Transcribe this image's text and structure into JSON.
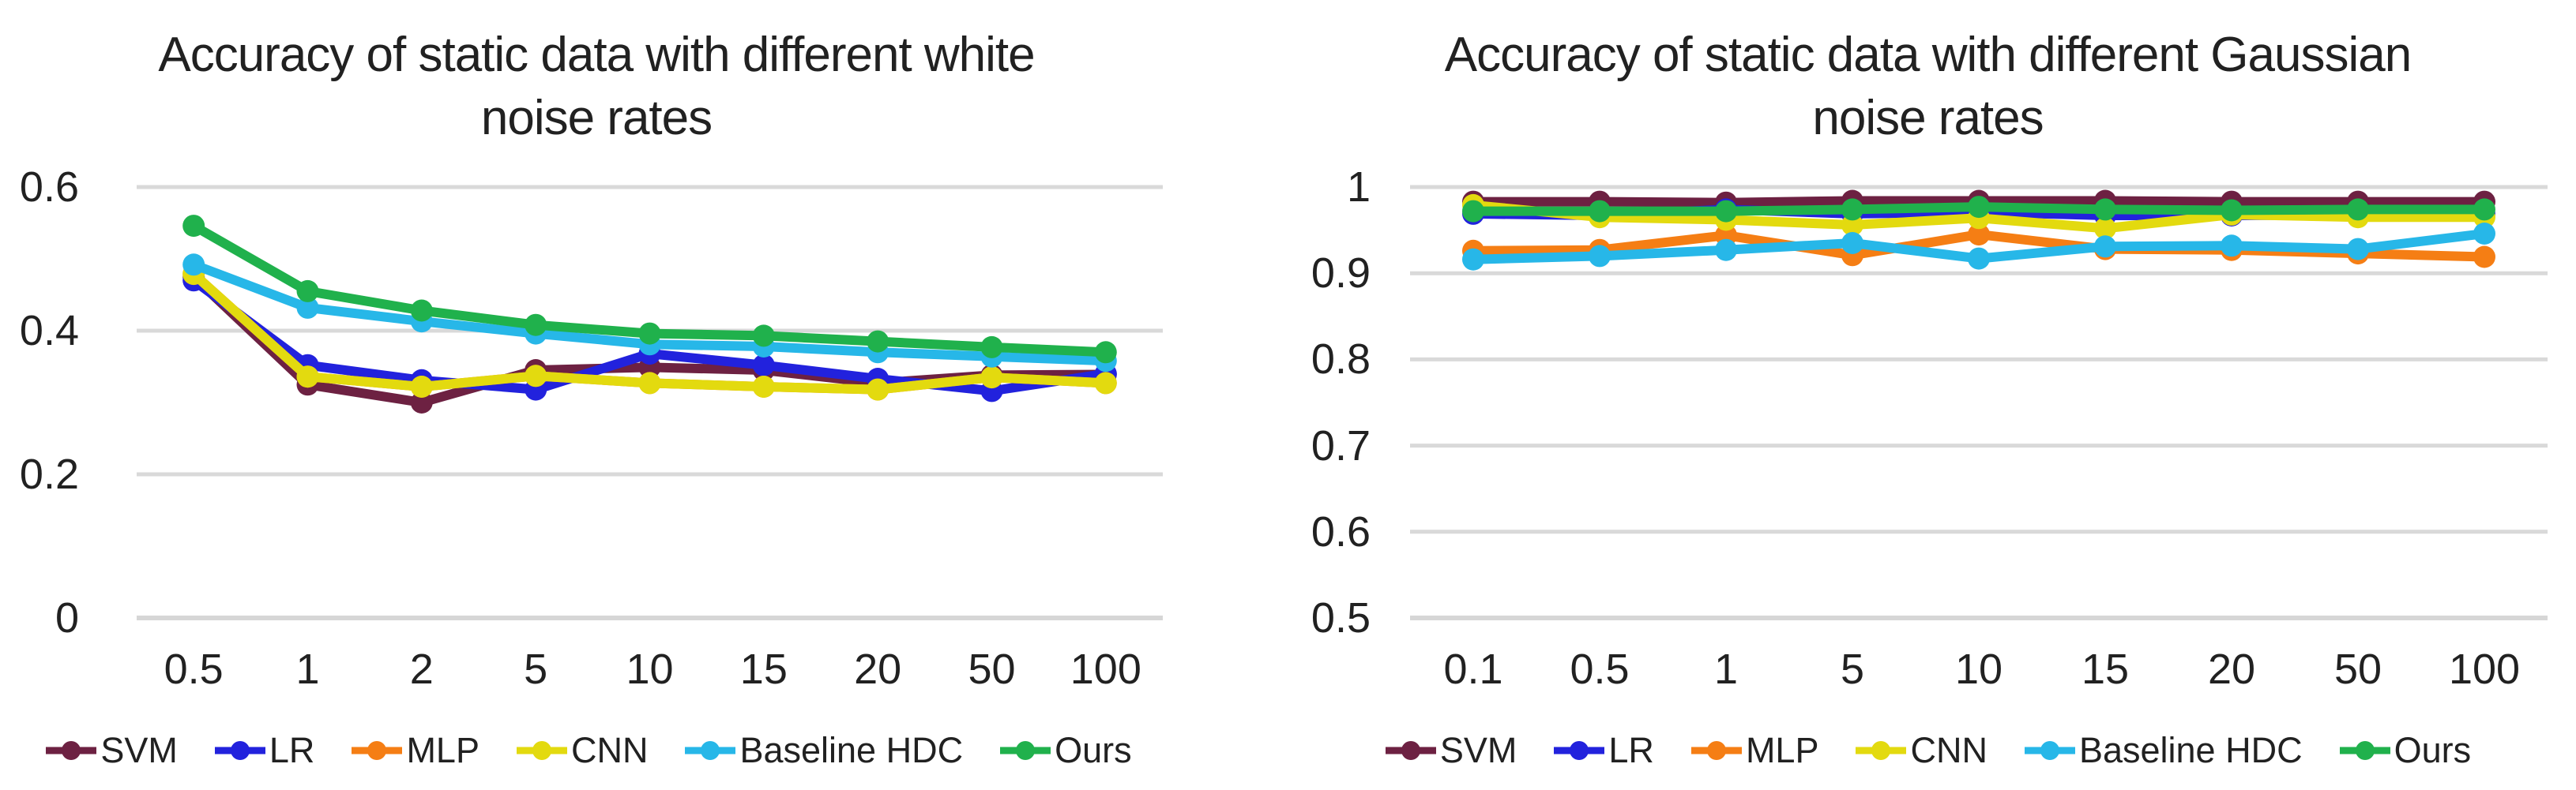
{
  "colors": {
    "background": "#ffffff",
    "gridline": "#d9d9d9",
    "axis_line": "#d6d6d6",
    "text": "#212121",
    "svm": "#6d2142",
    "lr": "#2222dd",
    "mlp": "#f57e14",
    "cnn": "#e3da0f",
    "baseline_hdc": "#27b7e8",
    "ours": "#20b14c"
  },
  "chart_data": [
    {
      "type": "line",
      "title": "Accuracy of static data with different white noise rates",
      "title_line1": "Accuracy of static data with different white",
      "title_line2": "noise rates",
      "xlabel": "",
      "ylabel": "",
      "categories": [
        "0.5",
        "1",
        "2",
        "5",
        "10",
        "15",
        "20",
        "50",
        "100"
      ],
      "ylim": [
        0,
        0.6
      ],
      "yticks": [
        "0.6",
        "0.4",
        "0.2",
        "0"
      ],
      "ytick_values": [
        0.6,
        0.4,
        0.2,
        0
      ],
      "grid": true,
      "legend_position": "bottom",
      "series": [
        {
          "name": "SVM",
          "color": "#6d2142",
          "values": [
            0.475,
            0.325,
            0.3,
            0.345,
            0.349,
            0.345,
            0.327,
            0.338,
            0.339
          ]
        },
        {
          "name": "LR",
          "color": "#2222dd",
          "values": [
            0.47,
            0.352,
            0.331,
            0.318,
            0.368,
            0.352,
            0.333,
            0.316,
            0.34
          ]
        },
        {
          "name": "MLP",
          "color": "#f57e14",
          "values": [
            0.479,
            0.336,
            0.322,
            0.337,
            0.327,
            0.322,
            0.318,
            0.335,
            0.327
          ]
        },
        {
          "name": "CNN",
          "color": "#e3da0f",
          "values": [
            0.479,
            0.336,
            0.322,
            0.337,
            0.327,
            0.322,
            0.318,
            0.335,
            0.327
          ]
        },
        {
          "name": "Baseline HDC",
          "color": "#27b7e8",
          "values": [
            0.492,
            0.432,
            0.413,
            0.396,
            0.381,
            0.378,
            0.37,
            0.364,
            0.358
          ]
        },
        {
          "name": "Ours",
          "color": "#20b14c",
          "values": [
            0.546,
            0.455,
            0.428,
            0.408,
            0.396,
            0.393,
            0.385,
            0.377,
            0.37
          ]
        }
      ]
    },
    {
      "type": "line",
      "title": "Accuracy of static data with different Gaussian noise rates",
      "title_line1": "Accuracy of static data with different Gaussian",
      "title_line2": "noise rates",
      "xlabel": "",
      "ylabel": "",
      "categories": [
        "0.1",
        "0.5",
        "1",
        "5",
        "10",
        "15",
        "20",
        "50",
        "100"
      ],
      "ylim": [
        0.5,
        1
      ],
      "yticks": [
        "1",
        "0.9",
        "0.8",
        "0.7",
        "0.6",
        "0.5"
      ],
      "ytick_values": [
        1,
        0.9,
        0.8,
        0.7,
        0.6,
        0.5
      ],
      "grid": true,
      "legend_position": "bottom",
      "series": [
        {
          "name": "SVM",
          "color": "#6d2142",
          "values": [
            0.983,
            0.983,
            0.982,
            0.984,
            0.984,
            0.984,
            0.983,
            0.983,
            0.983
          ]
        },
        {
          "name": "LR",
          "color": "#2222dd",
          "values": [
            0.969,
            0.967,
            0.974,
            0.969,
            0.971,
            0.967,
            0.967,
            0.968,
            0.969
          ]
        },
        {
          "name": "MLP",
          "color": "#f57e14",
          "values": [
            0.926,
            0.927,
            0.944,
            0.921,
            0.945,
            0.928,
            0.927,
            0.923,
            0.919
          ]
        },
        {
          "name": "CNN",
          "color": "#e3da0f",
          "values": [
            0.979,
            0.965,
            0.962,
            0.956,
            0.964,
            0.952,
            0.968,
            0.965,
            0.965
          ]
        },
        {
          "name": "Baseline HDC",
          "color": "#27b7e8",
          "values": [
            0.916,
            0.92,
            0.927,
            0.935,
            0.917,
            0.931,
            0.932,
            0.928,
            0.946
          ]
        },
        {
          "name": "Ours",
          "color": "#20b14c",
          "values": [
            0.972,
            0.972,
            0.972,
            0.974,
            0.977,
            0.974,
            0.973,
            0.974,
            0.974
          ]
        }
      ]
    }
  ]
}
